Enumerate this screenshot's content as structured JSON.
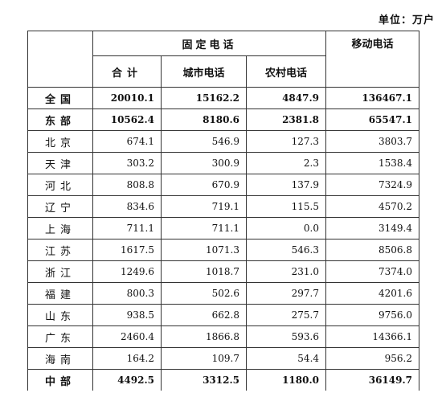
{
  "unit_label": "单位：万户",
  "headers": {
    "fixed_phone": "固定电话",
    "total": "合计",
    "urban": "城市电话",
    "rural": "农村电话",
    "mobile": "移动电话"
  },
  "rows": [
    {
      "region": "全国",
      "total": "20010.1",
      "urban": "15162.2",
      "rural": "4847.9",
      "mobile": "136467.1",
      "bold": true
    },
    {
      "region": "东部",
      "total": "10562.4",
      "urban": "8180.6",
      "rural": "2381.8",
      "mobile": "65547.1",
      "bold": true
    },
    {
      "region": "北京",
      "total": "674.1",
      "urban": "546.9",
      "rural": "127.3",
      "mobile": "3803.7",
      "bold": false
    },
    {
      "region": "天津",
      "total": "303.2",
      "urban": "300.9",
      "rural": "2.3",
      "mobile": "1538.4",
      "bold": false
    },
    {
      "region": "河北",
      "total": "808.8",
      "urban": "670.9",
      "rural": "137.9",
      "mobile": "7324.9",
      "bold": false
    },
    {
      "region": "辽宁",
      "total": "834.6",
      "urban": "719.1",
      "rural": "115.5",
      "mobile": "4570.2",
      "bold": false
    },
    {
      "region": "上海",
      "total": "711.1",
      "urban": "711.1",
      "rural": "0.0",
      "mobile": "3149.4",
      "bold": false
    },
    {
      "region": "江苏",
      "total": "1617.5",
      "urban": "1071.3",
      "rural": "546.3",
      "mobile": "8506.8",
      "bold": false
    },
    {
      "region": "浙江",
      "total": "1249.6",
      "urban": "1018.7",
      "rural": "231.0",
      "mobile": "7374.0",
      "bold": false
    },
    {
      "region": "福建",
      "total": "800.3",
      "urban": "502.6",
      "rural": "297.7",
      "mobile": "4201.6",
      "bold": false
    },
    {
      "region": "山东",
      "total": "938.5",
      "urban": "662.8",
      "rural": "275.7",
      "mobile": "9756.0",
      "bold": false
    },
    {
      "region": "广东",
      "total": "2460.4",
      "urban": "1866.8",
      "rural": "593.6",
      "mobile": "14366.1",
      "bold": false
    },
    {
      "region": "海南",
      "total": "164.2",
      "urban": "109.7",
      "rural": "54.4",
      "mobile": "956.2",
      "bold": false
    },
    {
      "region": "中部",
      "total": "4492.5",
      "urban": "3312.5",
      "rural": "1180.0",
      "mobile": "36149.7",
      "bold": true
    }
  ]
}
